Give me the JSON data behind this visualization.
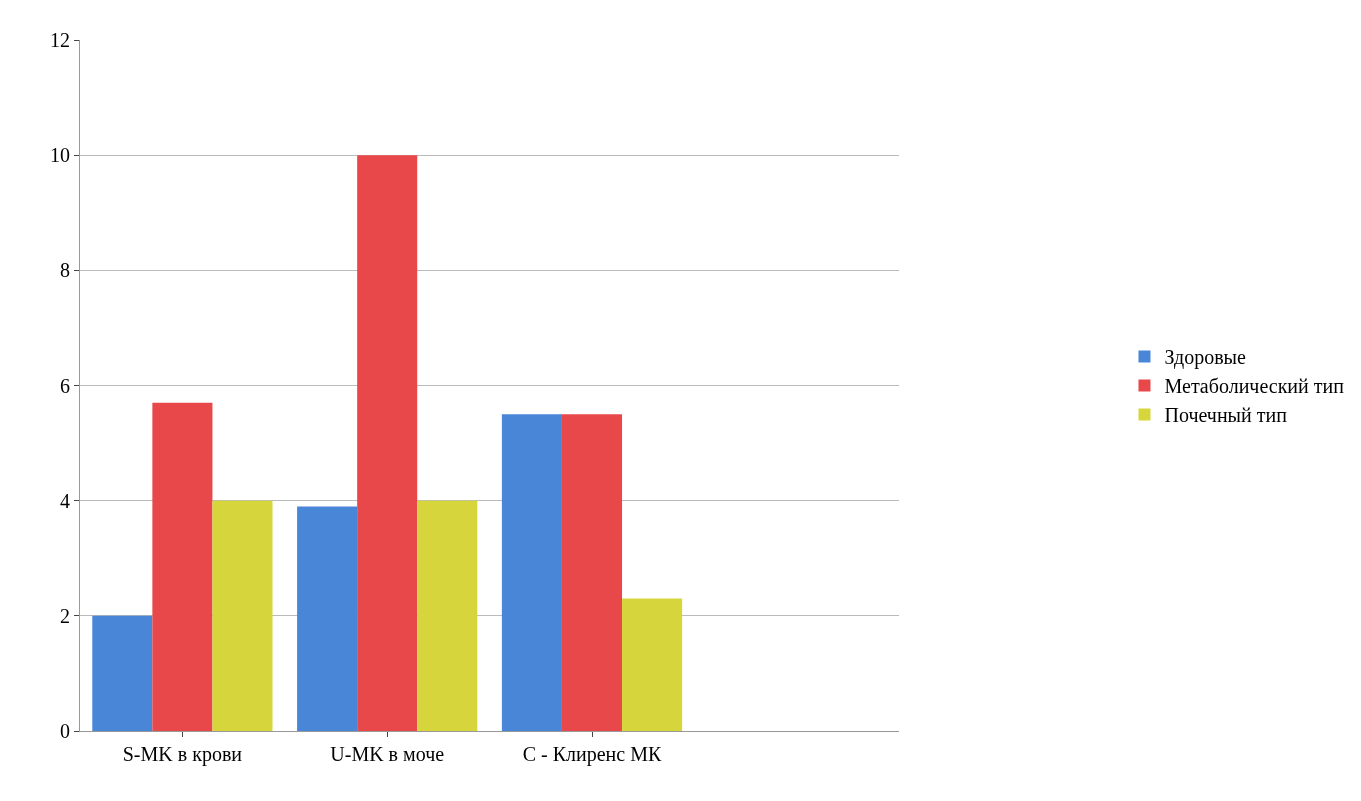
{
  "chart_data": {
    "type": "bar",
    "categories": [
      "S-MK в крови",
      "U-MK в моче",
      "C - Клиренс МК"
    ],
    "series": [
      {
        "name": "Здоровые",
        "color": "#4a86d8",
        "values": [
          2.0,
          3.9,
          5.5
        ]
      },
      {
        "name": "Метаболический тип",
        "color": "#e8484a",
        "values": [
          5.7,
          10.0,
          5.5
        ]
      },
      {
        "name": "Почечный тип",
        "color": "#d6d63c",
        "values": [
          4.0,
          4.0,
          2.3
        ]
      }
    ],
    "ylim": [
      0,
      12
    ],
    "yticks": [
      0,
      2,
      4,
      6,
      8,
      10,
      12
    ],
    "grid": "y",
    "legend": "right"
  }
}
